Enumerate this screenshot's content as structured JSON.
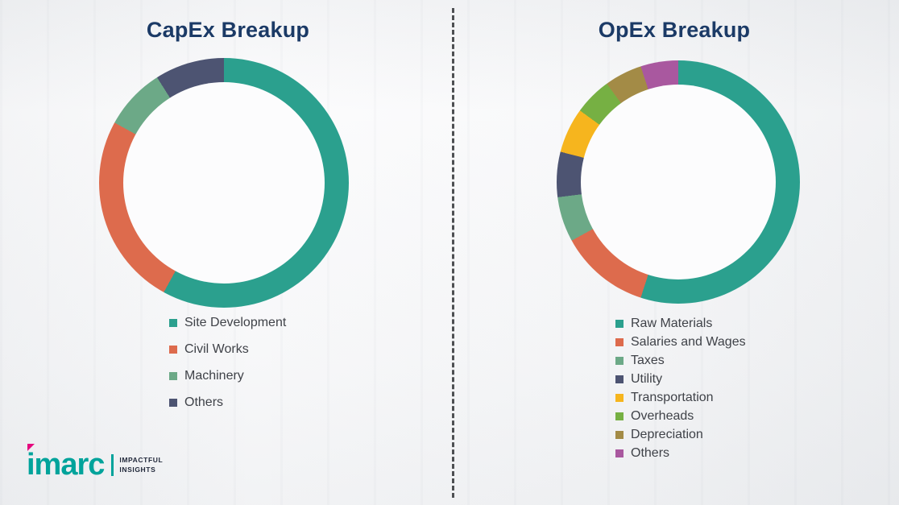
{
  "theme": {
    "title_color": "#1B3A66",
    "text_color": "#3F4248",
    "brand_teal": "#00A39B",
    "brand_pink": "#E5097F",
    "page_bg": "#fcfcfd"
  },
  "chart_data": [
    {
      "type": "pie",
      "subtype": "donut",
      "title": "CapEx Breakup",
      "labels": [
        "Site Development",
        "Civil Works",
        "Machinery",
        "Others"
      ],
      "values": [
        58,
        25,
        8,
        9
      ],
      "colors": [
        "#2BA08E",
        "#DD6B4D",
        "#6CA987",
        "#4D5472"
      ],
      "legend_position": "bottom",
      "start_angle_deg": 0,
      "direction": "clockwise"
    },
    {
      "type": "pie",
      "subtype": "donut",
      "title": "OpEx Breakup",
      "labels": [
        "Raw Materials",
        "Salaries and Wages",
        "Taxes",
        "Utility",
        "Transportation",
        "Overheads",
        "Depreciation",
        "Others"
      ],
      "values": [
        55,
        12,
        6,
        6,
        6,
        5,
        5,
        5
      ],
      "colors": [
        "#2BA08E",
        "#DD6B4D",
        "#6CA987",
        "#4D5472",
        "#F6B51E",
        "#76B043",
        "#A38B46",
        "#A9589F"
      ],
      "legend_position": "bottom",
      "start_angle_deg": 0,
      "direction": "clockwise"
    }
  ],
  "logo": {
    "brand": "imarc",
    "tagline": [
      "IMPACTFUL",
      "INSIGHTS"
    ]
  }
}
